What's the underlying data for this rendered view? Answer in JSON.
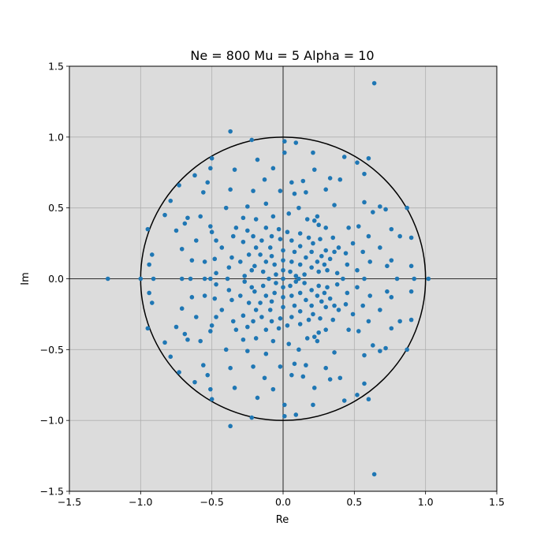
{
  "chart_data": {
    "type": "scatter",
    "title": "Ne = 800 Mu = 5 Alpha = 10",
    "xlabel": "Re",
    "ylabel": "Im",
    "xlim": [
      -1.5,
      1.5
    ],
    "ylim": [
      -1.5,
      1.5
    ],
    "xticks": [
      -1.5,
      -1.0,
      -0.5,
      0.0,
      0.5,
      1.0,
      1.5
    ],
    "yticks": [
      -1.5,
      -1.0,
      -0.5,
      0.0,
      0.5,
      1.0,
      1.5
    ],
    "xtick_labels": [
      "−1.5",
      "−1.0",
      "−0.5",
      "0.0",
      "0.5",
      "1.0",
      "1.5"
    ],
    "ytick_labels": [
      "−1.5",
      "−1.0",
      "−0.5",
      "0.0",
      "0.5",
      "1.0",
      "1.5"
    ],
    "grid": true,
    "background_color": "#dcdcdc",
    "marker_color": "#1f77b4",
    "unit_circle": {
      "center": [
        0,
        0
      ],
      "radius": 1,
      "color": "#000000"
    },
    "reference_lines": {
      "x": 0,
      "y": 0
    },
    "scatter_points": [
      [
        0.64,
        1.38
      ],
      [
        0.64,
        -1.38
      ],
      [
        -1.23,
        0.0
      ],
      [
        1.02,
        0.0
      ],
      [
        -0.37,
        1.04
      ],
      [
        -0.37,
        -1.04
      ],
      [
        -0.22,
        0.98
      ],
      [
        -0.22,
        -0.98
      ],
      [
        0.01,
        0.97
      ],
      [
        0.01,
        -0.97
      ],
      [
        0.09,
        0.96
      ],
      [
        0.09,
        -0.96
      ],
      [
        0.21,
        0.89
      ],
      [
        0.21,
        -0.89
      ],
      [
        0.6,
        0.85
      ],
      [
        0.6,
        -0.85
      ],
      [
        -0.5,
        0.85
      ],
      [
        -0.5,
        -0.85
      ],
      [
        0.52,
        0.82
      ],
      [
        0.52,
        -0.82
      ],
      [
        0.43,
        0.86
      ],
      [
        0.43,
        -0.86
      ],
      [
        0.01,
        0.89
      ],
      [
        0.01,
        -0.89
      ],
      [
        -0.18,
        0.84
      ],
      [
        -0.18,
        -0.84
      ],
      [
        -0.51,
        0.78
      ],
      [
        -0.51,
        -0.78
      ],
      [
        -0.34,
        0.77
      ],
      [
        -0.34,
        -0.77
      ],
      [
        -0.62,
        0.73
      ],
      [
        -0.62,
        -0.73
      ],
      [
        0.57,
        0.74
      ],
      [
        0.57,
        -0.74
      ],
      [
        -0.07,
        0.78
      ],
      [
        -0.07,
        -0.78
      ],
      [
        -0.73,
        0.66
      ],
      [
        -0.73,
        -0.66
      ],
      [
        -0.53,
        0.68
      ],
      [
        -0.53,
        -0.68
      ],
      [
        0.22,
        0.77
      ],
      [
        0.22,
        -0.77
      ],
      [
        0.33,
        0.71
      ],
      [
        0.33,
        -0.71
      ],
      [
        0.4,
        0.7
      ],
      [
        0.4,
        -0.7
      ],
      [
        -0.13,
        0.7
      ],
      [
        -0.13,
        -0.7
      ],
      [
        0.14,
        0.69
      ],
      [
        0.14,
        -0.69
      ],
      [
        0.06,
        0.68
      ],
      [
        0.06,
        -0.68
      ],
      [
        -0.21,
        0.62
      ],
      [
        -0.21,
        -0.62
      ],
      [
        0.3,
        0.63
      ],
      [
        0.3,
        -0.63
      ],
      [
        -0.37,
        0.63
      ],
      [
        -0.37,
        -0.63
      ],
      [
        -0.56,
        0.61
      ],
      [
        -0.56,
        -0.61
      ],
      [
        0.08,
        0.6
      ],
      [
        0.08,
        -0.6
      ],
      [
        -0.02,
        0.62
      ],
      [
        -0.02,
        -0.62
      ],
      [
        0.16,
        0.61
      ],
      [
        0.16,
        -0.61
      ],
      [
        -0.79,
        0.55
      ],
      [
        -0.79,
        -0.55
      ],
      [
        0.57,
        0.54
      ],
      [
        0.57,
        -0.54
      ],
      [
        0.68,
        0.51
      ],
      [
        0.68,
        -0.51
      ],
      [
        0.72,
        0.49
      ],
      [
        0.72,
        -0.49
      ],
      [
        0.87,
        0.5
      ],
      [
        0.87,
        -0.5
      ],
      [
        0.36,
        0.52
      ],
      [
        0.36,
        -0.52
      ],
      [
        0.63,
        0.47
      ],
      [
        0.63,
        -0.47
      ],
      [
        -0.12,
        0.53
      ],
      [
        -0.12,
        -0.53
      ],
      [
        -0.25,
        0.51
      ],
      [
        -0.25,
        -0.51
      ],
      [
        -0.4,
        0.5
      ],
      [
        -0.4,
        -0.5
      ],
      [
        -0.58,
        0.44
      ],
      [
        -0.58,
        -0.44
      ],
      [
        -0.67,
        0.43
      ],
      [
        -0.67,
        -0.43
      ],
      [
        -0.83,
        0.45
      ],
      [
        -0.83,
        -0.45
      ],
      [
        0.11,
        0.5
      ],
      [
        0.11,
        -0.5
      ],
      [
        0.24,
        0.44
      ],
      [
        0.24,
        -0.44
      ],
      [
        0.22,
        0.41
      ],
      [
        0.22,
        -0.41
      ],
      [
        -0.19,
        0.42
      ],
      [
        -0.19,
        -0.42
      ],
      [
        -0.07,
        0.44
      ],
      [
        -0.07,
        -0.44
      ],
      [
        -0.28,
        0.43
      ],
      [
        -0.28,
        -0.43
      ],
      [
        0.04,
        0.46
      ],
      [
        0.04,
        -0.46
      ],
      [
        -0.95,
        0.35
      ],
      [
        -0.95,
        -0.35
      ],
      [
        -0.69,
        0.39
      ],
      [
        -0.69,
        -0.39
      ],
      [
        -0.75,
        0.34
      ],
      [
        -0.75,
        -0.34
      ],
      [
        -0.51,
        0.37
      ],
      [
        -0.51,
        -0.37
      ],
      [
        -0.5,
        0.33
      ],
      [
        -0.5,
        -0.33
      ],
      [
        0.76,
        0.35
      ],
      [
        0.76,
        -0.35
      ],
      [
        0.82,
        0.3
      ],
      [
        0.82,
        -0.3
      ],
      [
        0.9,
        0.29
      ],
      [
        0.9,
        -0.29
      ],
      [
        0.53,
        0.37
      ],
      [
        0.53,
        -0.37
      ],
      [
        0.46,
        0.36
      ],
      [
        0.46,
        -0.36
      ],
      [
        0.6,
        0.3
      ],
      [
        0.6,
        -0.3
      ],
      [
        -0.12,
        0.36
      ],
      [
        -0.12,
        -0.36
      ],
      [
        0.3,
        0.36
      ],
      [
        0.3,
        -0.36
      ],
      [
        0.35,
        0.29
      ],
      [
        0.35,
        -0.29
      ],
      [
        -0.33,
        0.36
      ],
      [
        -0.33,
        -0.36
      ],
      [
        -0.25,
        0.34
      ],
      [
        -0.25,
        -0.34
      ],
      [
        -0.35,
        0.3
      ],
      [
        -0.35,
        -0.3
      ],
      [
        -0.21,
        0.3
      ],
      [
        -0.21,
        -0.3
      ],
      [
        -0.47,
        0.27
      ],
      [
        -0.47,
        -0.27
      ],
      [
        -0.61,
        0.27
      ],
      [
        -0.61,
        -0.27
      ],
      [
        -0.28,
        0.26
      ],
      [
        -0.28,
        -0.26
      ],
      [
        -0.43,
        0.22
      ],
      [
        -0.43,
        -0.22
      ],
      [
        -0.71,
        0.21
      ],
      [
        -0.71,
        -0.21
      ],
      [
        0.68,
        0.22
      ],
      [
        0.68,
        -0.22
      ],
      [
        0.49,
        0.25
      ],
      [
        0.49,
        -0.25
      ],
      [
        0.39,
        0.22
      ],
      [
        0.39,
        -0.22
      ],
      [
        0.36,
        0.19
      ],
      [
        0.36,
        -0.19
      ],
      [
        0.44,
        0.18
      ],
      [
        0.44,
        -0.18
      ],
      [
        0.56,
        0.19
      ],
      [
        0.56,
        -0.19
      ],
      [
        -0.92,
        0.17
      ],
      [
        -0.92,
        -0.17
      ],
      [
        -0.94,
        0.1
      ],
      [
        -0.94,
        -0.1
      ],
      [
        -0.64,
        0.13
      ],
      [
        -0.64,
        -0.13
      ],
      [
        -0.55,
        0.12
      ],
      [
        -0.55,
        -0.12
      ],
      [
        -0.48,
        0.14
      ],
      [
        -0.48,
        -0.14
      ],
      [
        -0.36,
        0.15
      ],
      [
        -0.36,
        -0.15
      ],
      [
        -0.3,
        0.12
      ],
      [
        -0.3,
        -0.12
      ],
      [
        0.61,
        0.12
      ],
      [
        0.61,
        -0.12
      ],
      [
        0.76,
        0.13
      ],
      [
        0.76,
        -0.13
      ],
      [
        0.45,
        0.1
      ],
      [
        0.45,
        -0.1
      ],
      [
        0.52,
        0.06
      ],
      [
        0.52,
        -0.06
      ],
      [
        0.73,
        0.09
      ],
      [
        0.73,
        -0.09
      ],
      [
        0.9,
        0.09
      ],
      [
        0.9,
        -0.09
      ],
      [
        -0.38,
        0.08
      ],
      [
        -0.38,
        -0.08
      ],
      [
        -0.22,
        0.06
      ],
      [
        -0.22,
        -0.06
      ],
      [
        -0.47,
        0.04
      ],
      [
        -0.47,
        -0.04
      ],
      [
        -0.51,
        0.0
      ],
      [
        -0.55,
        0.0
      ],
      [
        -0.65,
        0.0
      ],
      [
        -0.71,
        0.0
      ],
      [
        -0.91,
        0.0
      ],
      [
        -1.0,
        0.0
      ],
      [
        0.57,
        0.0
      ],
      [
        0.8,
        0.0
      ],
      [
        0.92,
        0.0
      ],
      [
        0.42,
        0.0
      ],
      [
        -0.39,
        0.0
      ],
      [
        -0.27,
        0.02
      ],
      [
        -0.27,
        -0.02
      ],
      [
        0.38,
        0.04
      ],
      [
        0.38,
        -0.04
      ],
      [
        0.25,
        0.38
      ],
      [
        0.25,
        -0.38
      ],
      [
        0.17,
        0.42
      ],
      [
        0.17,
        -0.42
      ],
      [
        -0.03,
        0.35
      ],
      [
        -0.03,
        -0.35
      ],
      [
        0.03,
        0.33
      ],
      [
        0.03,
        -0.33
      ],
      [
        -0.08,
        0.3
      ],
      [
        -0.08,
        -0.3
      ],
      [
        0.12,
        0.32
      ],
      [
        0.12,
        -0.32
      ],
      [
        0.18,
        0.29
      ],
      [
        0.18,
        -0.29
      ],
      [
        0.26,
        0.28
      ],
      [
        0.26,
        -0.28
      ],
      [
        0.3,
        0.2
      ],
      [
        0.3,
        -0.2
      ],
      [
        0.33,
        0.14
      ],
      [
        0.33,
        -0.14
      ],
      [
        0.29,
        0.1
      ],
      [
        0.29,
        -0.1
      ],
      [
        -0.19,
        0.22
      ],
      [
        -0.19,
        -0.22
      ],
      [
        -0.24,
        0.17
      ],
      [
        -0.24,
        -0.17
      ],
      [
        -0.15,
        0.27
      ],
      [
        -0.15,
        -0.27
      ],
      [
        -0.02,
        0.28
      ],
      [
        -0.02,
        -0.28
      ],
      [
        0.06,
        0.27
      ],
      [
        0.06,
        -0.27
      ],
      [
        0.21,
        0.25
      ],
      [
        0.21,
        -0.25
      ],
      [
        0.27,
        0.16
      ],
      [
        0.27,
        -0.16
      ],
      [
        0.31,
        0.06
      ],
      [
        0.31,
        -0.06
      ],
      [
        -0.2,
        0.09
      ],
      [
        -0.2,
        -0.09
      ],
      [
        -0.16,
        0.17
      ],
      [
        -0.16,
        -0.17
      ],
      [
        -0.09,
        0.22
      ],
      [
        -0.09,
        -0.22
      ],
      [
        0.12,
        0.23
      ],
      [
        0.12,
        -0.23
      ],
      [
        0.2,
        0.19
      ],
      [
        0.2,
        -0.19
      ],
      [
        0.24,
        0.12
      ],
      [
        0.24,
        -0.12
      ],
      [
        0.25,
        0.05
      ],
      [
        0.25,
        -0.05
      ],
      [
        -0.12,
        0.12
      ],
      [
        -0.12,
        -0.12
      ],
      [
        -0.08,
        0.16
      ],
      [
        -0.08,
        -0.16
      ],
      [
        0.0,
        0.2
      ],
      [
        0.0,
        -0.2
      ],
      [
        0.08,
        0.19
      ],
      [
        0.08,
        -0.19
      ],
      [
        0.16,
        0.15
      ],
      [
        0.16,
        -0.15
      ],
      [
        0.2,
        0.08
      ],
      [
        0.2,
        -0.08
      ],
      [
        -0.14,
        0.05
      ],
      [
        -0.14,
        -0.05
      ],
      [
        -0.06,
        0.1
      ],
      [
        -0.06,
        -0.1
      ],
      [
        0.0,
        0.13
      ],
      [
        0.0,
        -0.13
      ],
      [
        0.06,
        0.12
      ],
      [
        0.06,
        -0.12
      ],
      [
        0.12,
        0.1
      ],
      [
        0.12,
        -0.1
      ],
      [
        0.15,
        0.03
      ],
      [
        0.15,
        -0.03
      ],
      [
        -0.05,
        0.03
      ],
      [
        -0.05,
        -0.03
      ],
      [
        0.0,
        0.06
      ],
      [
        0.0,
        -0.06
      ],
      [
        0.05,
        0.05
      ],
      [
        0.05,
        -0.05
      ],
      [
        0.09,
        0.02
      ],
      [
        0.09,
        -0.02
      ],
      [
        -0.1,
        0.0
      ],
      [
        0.11,
        0.0
      ],
      [
        0.0,
        0.0
      ]
    ]
  }
}
